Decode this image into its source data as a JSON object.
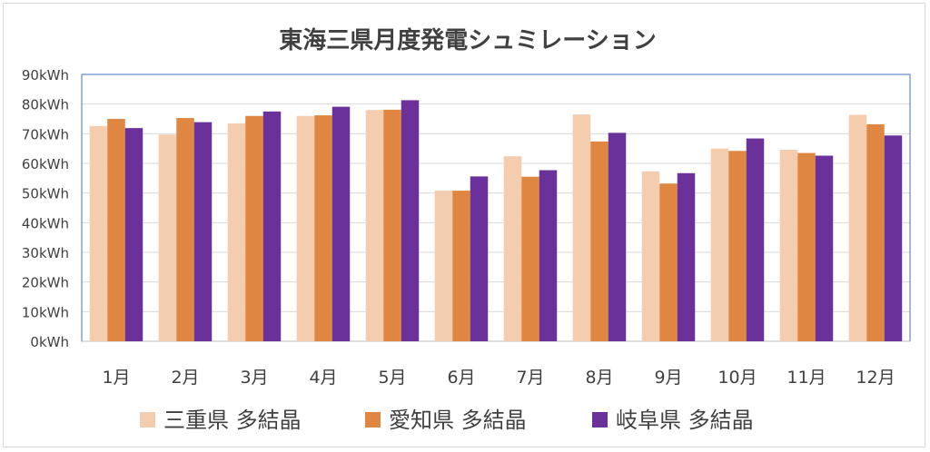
{
  "chart_data": {
    "type": "bar",
    "title": "東海三県月度発電シュミレーション",
    "xlabel": "",
    "ylabel": "",
    "categories": [
      "1月",
      "2月",
      "3月",
      "4月",
      "5月",
      "6月",
      "7月",
      "8月",
      "9月",
      "10月",
      "11月",
      "12月"
    ],
    "series": [
      {
        "name": "三重県 多結晶",
        "color": "#f4cdaf",
        "values": [
          72.6,
          69.7,
          73.5,
          76.0,
          78.0,
          50.8,
          62.4,
          76.5,
          57.3,
          65.0,
          64.6,
          76.4
        ]
      },
      {
        "name": "愛知県 多結晶",
        "color": "#df8742",
        "values": [
          75.0,
          75.3,
          76.0,
          76.2,
          78.1,
          50.8,
          55.5,
          67.4,
          53.2,
          64.2,
          63.5,
          73.2
        ]
      },
      {
        "name": "岐阜県 多結晶",
        "color": "#6b319a",
        "values": [
          71.9,
          73.9,
          77.5,
          79.1,
          81.3,
          55.6,
          57.7,
          70.3,
          56.7,
          68.4,
          62.6,
          69.4
        ]
      }
    ],
    "ylim": [
      0,
      90
    ],
    "yticks": [
      "0kWh",
      "10kWh",
      "20kWh",
      "30kWh",
      "40kWh",
      "50kWh",
      "60kWh",
      "70kWh",
      "80kWh",
      "90kWh"
    ],
    "grid": true,
    "legend_position": "bottom"
  }
}
